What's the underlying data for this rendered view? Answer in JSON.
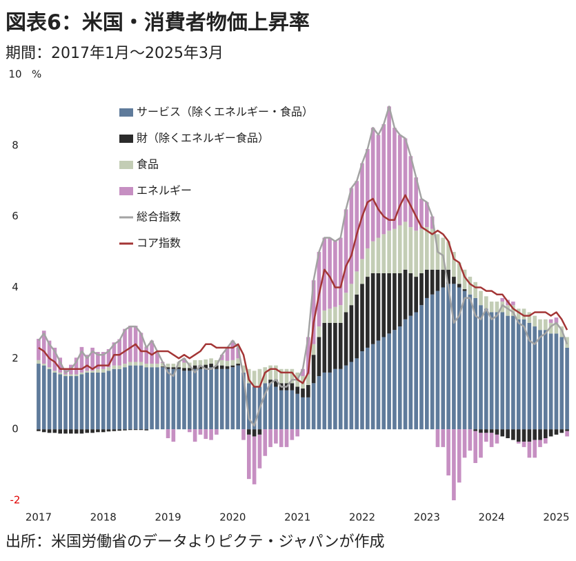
{
  "chart_data": {
    "type": "stacked_bar_line",
    "title": "図表6：米国・消費者物価上昇率",
    "subtitle": "期間：2017年1月〜2025年3月",
    "source": "出所：米国労働省のデータよりピクテ・ジャパンが作成",
    "y_unit": "%",
    "ylim": [
      -2,
      10
    ],
    "yticks": [
      -2,
      0,
      2,
      4,
      6,
      8,
      10
    ],
    "negative_tick_color": "#e00000",
    "categories": [
      "2017",
      null,
      null,
      null,
      null,
      null,
      null,
      null,
      null,
      null,
      null,
      null,
      "2018",
      null,
      null,
      null,
      null,
      null,
      null,
      null,
      null,
      null,
      null,
      null,
      "2019",
      null,
      null,
      null,
      null,
      null,
      null,
      null,
      null,
      null,
      null,
      null,
      "2020",
      null,
      null,
      null,
      null,
      null,
      null,
      null,
      null,
      null,
      null,
      null,
      "2021",
      null,
      null,
      null,
      null,
      null,
      null,
      null,
      null,
      null,
      null,
      null,
      "2022",
      null,
      null,
      null,
      null,
      null,
      null,
      null,
      null,
      null,
      null,
      null,
      "2023",
      null,
      null,
      null,
      null,
      null,
      null,
      null,
      null,
      null,
      null,
      null,
      "2024",
      null,
      null,
      null,
      null,
      null,
      null,
      null,
      null,
      null,
      null,
      null,
      "2025",
      null,
      null
    ],
    "series": [
      {
        "name": "サービス（除くエネルギー・食品）",
        "kind": "bar",
        "color": "#5f7b9b",
        "values": [
          1.85,
          1.8,
          1.7,
          1.6,
          1.55,
          1.5,
          1.5,
          1.5,
          1.55,
          1.6,
          1.6,
          1.6,
          1.6,
          1.65,
          1.7,
          1.7,
          1.75,
          1.8,
          1.8,
          1.8,
          1.75,
          1.75,
          1.75,
          1.75,
          1.7,
          1.7,
          1.7,
          1.65,
          1.65,
          1.7,
          1.7,
          1.7,
          1.75,
          1.7,
          1.7,
          1.7,
          1.75,
          1.8,
          1.6,
          1.3,
          1.2,
          1.2,
          1.3,
          1.3,
          1.2,
          1.1,
          1.1,
          1.1,
          1.0,
          0.9,
          0.9,
          1.3,
          1.5,
          1.6,
          1.6,
          1.7,
          1.7,
          1.8,
          1.9,
          2.0,
          2.2,
          2.3,
          2.4,
          2.5,
          2.6,
          2.7,
          2.8,
          2.9,
          3.1,
          3.2,
          3.3,
          3.5,
          3.7,
          3.8,
          3.9,
          4.0,
          4.1,
          4.1,
          4.0,
          3.9,
          3.8,
          3.7,
          3.5,
          3.4,
          3.3,
          3.3,
          3.3,
          3.2,
          3.2,
          3.1,
          3.1,
          3.0,
          2.9,
          2.8,
          2.8,
          2.7,
          2.7,
          2.6,
          2.3
        ]
      },
      {
        "name": "財（除くエネルギー食品）",
        "kind": "bar",
        "color": "#2b2b2b",
        "values": [
          -0.05,
          -0.08,
          -0.1,
          -0.1,
          -0.12,
          -0.12,
          -0.12,
          -0.12,
          -0.12,
          -0.1,
          -0.1,
          -0.08,
          -0.08,
          -0.06,
          -0.05,
          -0.04,
          -0.03,
          -0.02,
          -0.02,
          -0.02,
          -0.03,
          0.0,
          0.0,
          0.02,
          0.05,
          0.05,
          0.05,
          0.08,
          0.08,
          0.1,
          0.1,
          0.12,
          0.1,
          0.1,
          0.1,
          0.08,
          0.05,
          0.05,
          0.0,
          -0.15,
          -0.2,
          -0.15,
          0.0,
          0.1,
          0.2,
          0.2,
          0.2,
          0.2,
          0.2,
          0.25,
          0.35,
          0.8,
          1.1,
          1.4,
          1.4,
          1.3,
          1.3,
          1.5,
          1.6,
          1.8,
          1.9,
          2.0,
          2.0,
          1.9,
          1.8,
          1.7,
          1.6,
          1.5,
          1.4,
          1.2,
          1.0,
          0.9,
          0.8,
          0.7,
          0.6,
          0.5,
          0.4,
          0.2,
          0.1,
          0.05,
          0.0,
          -0.05,
          -0.1,
          -0.1,
          -0.1,
          -0.15,
          -0.2,
          -0.25,
          -0.3,
          -0.35,
          -0.35,
          -0.35,
          -0.3,
          -0.3,
          -0.25,
          -0.2,
          -0.15,
          -0.1,
          -0.05
        ]
      },
      {
        "name": "食品",
        "kind": "bar",
        "color": "#c3cdb5",
        "values": [
          0.1,
          0.05,
          0.05,
          0.05,
          0.05,
          0.05,
          0.05,
          0.05,
          0.05,
          0.05,
          0.05,
          0.1,
          0.1,
          0.1,
          0.1,
          0.1,
          0.1,
          0.1,
          0.1,
          0.1,
          0.1,
          0.1,
          0.1,
          0.1,
          0.1,
          0.1,
          0.15,
          0.15,
          0.15,
          0.15,
          0.15,
          0.15,
          0.15,
          0.15,
          0.15,
          0.15,
          0.15,
          0.15,
          0.2,
          0.4,
          0.45,
          0.5,
          0.45,
          0.4,
          0.4,
          0.4,
          0.4,
          0.4,
          0.4,
          0.35,
          0.3,
          0.3,
          0.3,
          0.35,
          0.4,
          0.45,
          0.5,
          0.55,
          0.6,
          0.65,
          0.7,
          0.8,
          0.9,
          1.0,
          1.1,
          1.2,
          1.25,
          1.35,
          1.35,
          1.3,
          1.3,
          1.25,
          1.2,
          1.15,
          1.0,
          0.9,
          0.8,
          0.7,
          0.6,
          0.55,
          0.5,
          0.45,
          0.4,
          0.35,
          0.3,
          0.3,
          0.3,
          0.3,
          0.3,
          0.3,
          0.3,
          0.3,
          0.3,
          0.3,
          0.3,
          0.3,
          0.3,
          0.3,
          0.3
        ]
      },
      {
        "name": "エネルギー",
        "kind": "bar",
        "color": "#c68fc2",
        "values": [
          0.6,
          0.93,
          0.75,
          0.65,
          0.42,
          0.17,
          0.27,
          0.47,
          0.72,
          0.45,
          0.65,
          0.48,
          0.48,
          0.51,
          0.65,
          0.74,
          0.98,
          1.02,
          1.02,
          0.82,
          0.48,
          0.65,
          0.35,
          0.03,
          -0.25,
          -0.35,
          0.0,
          0.12,
          -0.08,
          -0.35,
          -0.15,
          -0.27,
          -0.3,
          -0.15,
          0.15,
          0.37,
          0.55,
          0.3,
          -0.3,
          -1.25,
          -1.35,
          -0.95,
          -0.75,
          -0.5,
          -0.4,
          -0.5,
          -0.5,
          -0.3,
          -0.2,
          0.2,
          1.05,
          1.8,
          2.1,
          2.05,
          2.0,
          1.85,
          1.9,
          2.35,
          2.7,
          2.55,
          2.7,
          2.8,
          3.2,
          2.9,
          3.1,
          3.5,
          2.85,
          2.55,
          2.35,
          2.0,
          1.5,
          0.85,
          0.7,
          0.35,
          -0.5,
          -0.5,
          -1.3,
          -2.0,
          -1.5,
          -0.8,
          -0.6,
          -0.9,
          -0.7,
          -0.25,
          -0.4,
          -0.25,
          0.1,
          0.15,
          0.1,
          -0.05,
          -0.15,
          -0.45,
          -0.5,
          -0.2,
          -0.15,
          0.1,
          0.15,
          0.0,
          -0.15
        ]
      },
      {
        "name": "総合指数",
        "kind": "line",
        "color": "#a3a3a3",
        "values": [
          2.5,
          2.7,
          2.4,
          2.2,
          1.9,
          1.6,
          1.7,
          1.9,
          2.2,
          2.0,
          2.2,
          2.1,
          2.1,
          2.2,
          2.4,
          2.5,
          2.8,
          2.9,
          2.9,
          2.7,
          2.3,
          2.5,
          2.2,
          1.9,
          1.6,
          1.5,
          1.9,
          2.0,
          1.8,
          1.6,
          1.8,
          1.7,
          1.7,
          1.8,
          2.1,
          2.3,
          2.5,
          2.3,
          1.5,
          0.3,
          0.1,
          0.6,
          1.0,
          1.3,
          1.4,
          1.2,
          1.2,
          1.4,
          1.4,
          1.7,
          2.6,
          4.2,
          5.0,
          5.4,
          5.4,
          5.3,
          5.4,
          6.2,
          6.8,
          7.0,
          7.5,
          7.9,
          8.5,
          8.3,
          8.6,
          9.1,
          8.5,
          8.3,
          8.2,
          7.7,
          7.1,
          6.5,
          6.4,
          6.0,
          5.0,
          4.9,
          4.0,
          3.0,
          3.2,
          3.7,
          3.7,
          3.2,
          3.1,
          3.4,
          3.1,
          3.2,
          3.5,
          3.4,
          3.3,
          3.0,
          2.9,
          2.5,
          2.4,
          2.6,
          2.7,
          2.9,
          3.0,
          2.8,
          2.4
        ]
      },
      {
        "name": "コア指数",
        "kind": "line",
        "color": "#a33535",
        "values": [
          2.3,
          2.2,
          2.0,
          1.9,
          1.7,
          1.7,
          1.7,
          1.7,
          1.7,
          1.8,
          1.7,
          1.8,
          1.8,
          1.8,
          2.1,
          2.1,
          2.2,
          2.3,
          2.4,
          2.2,
          2.2,
          2.1,
          2.2,
          2.2,
          2.2,
          2.1,
          2.0,
          2.1,
          2.0,
          2.1,
          2.2,
          2.4,
          2.4,
          2.3,
          2.3,
          2.3,
          2.3,
          2.4,
          2.1,
          1.4,
          1.2,
          1.2,
          1.6,
          1.7,
          1.7,
          1.6,
          1.6,
          1.6,
          1.4,
          1.3,
          1.6,
          3.0,
          3.8,
          4.5,
          4.3,
          4.0,
          4.0,
          4.6,
          4.9,
          5.5,
          6.0,
          6.4,
          6.5,
          6.2,
          6.0,
          5.9,
          5.9,
          6.3,
          6.6,
          6.3,
          6.0,
          5.7,
          5.6,
          5.5,
          5.6,
          5.5,
          5.3,
          4.8,
          4.7,
          4.3,
          4.1,
          4.0,
          4.0,
          3.9,
          3.9,
          3.8,
          3.8,
          3.6,
          3.4,
          3.3,
          3.2,
          3.2,
          3.3,
          3.3,
          3.3,
          3.2,
          3.3,
          3.1,
          2.8
        ]
      }
    ]
  }
}
